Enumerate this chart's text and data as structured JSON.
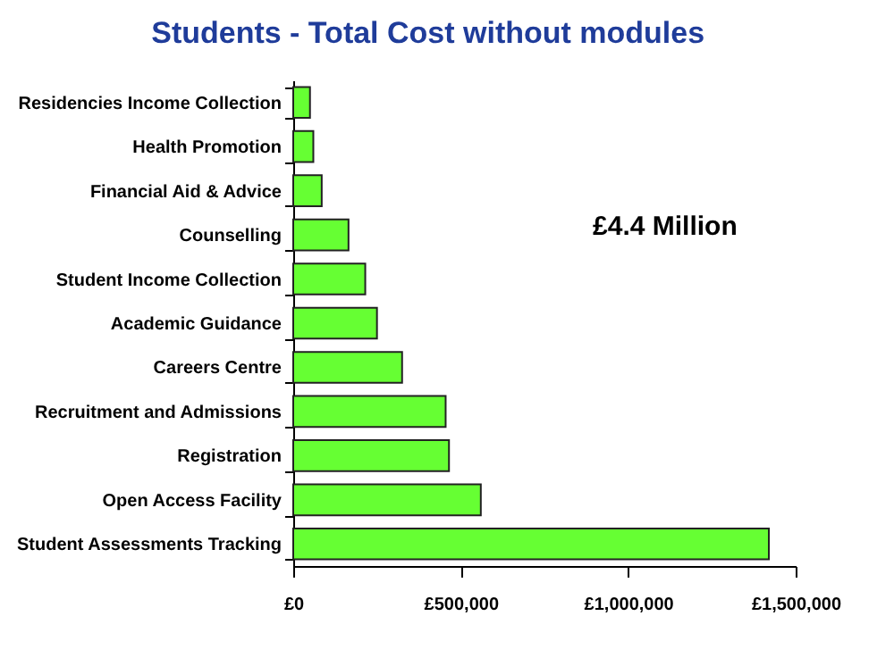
{
  "chart_data": {
    "type": "bar",
    "orientation": "horizontal",
    "title": "Students - Total Cost without modules",
    "categories": [
      "Residencies Income Collection",
      "Health Promotion",
      "Financial Aid & Advice",
      "Counselling",
      "Student Income Collection",
      "Academic Guidance",
      "Careers Centre",
      "Recruitment and Admissions",
      "Registration",
      "Open Access Facility",
      "Student Assessments Tracking"
    ],
    "values": [
      50000,
      60000,
      85000,
      165000,
      215000,
      250000,
      325000,
      455000,
      465000,
      560000,
      1420000
    ],
    "color": "#66ff33",
    "xlim": [
      0,
      1500000
    ],
    "xticks": [
      {
        "value": 0,
        "label": "£0"
      },
      {
        "value": 500000,
        "label": "£500,000"
      },
      {
        "value": 1000000,
        "label": "£1,000,000"
      },
      {
        "value": 1500000,
        "label": "£1,500,000"
      }
    ],
    "annotations": [
      "£4.4 Million"
    ],
    "grid": false
  }
}
